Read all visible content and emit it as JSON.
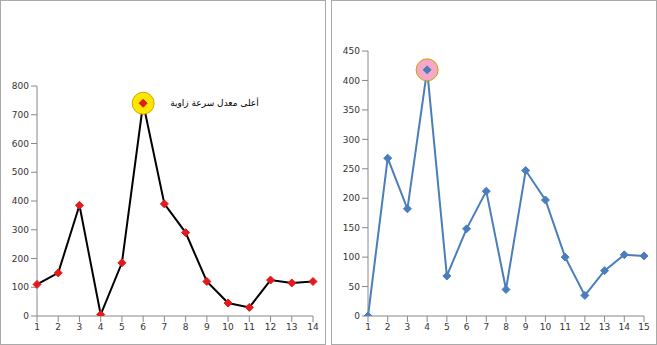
{
  "chart_data": [
    {
      "type": "line",
      "categories": [
        "1",
        "2",
        "3",
        "4",
        "5",
        "6",
        "7",
        "8",
        "9",
        "10",
        "11",
        "12",
        "13",
        "14"
      ],
      "series": [
        {
          "values": [
            110,
            150,
            385,
            5,
            185,
            740,
            390,
            290,
            120,
            45,
            30,
            125,
            115,
            120
          ],
          "color": "#000000",
          "marker": "diamond",
          "colors": [
            "#e31a1c",
            "#e31a1c",
            "#e31a1c",
            "#e31a1c",
            "#e31a1c",
            "#e31a1c",
            "#e31a1c",
            "#e31a1c",
            "#e31a1c",
            "#e31a1c",
            "#e31a1c",
            "#e31a1c",
            "#e31a1c",
            "#e31a1c"
          ]
        }
      ],
      "ylim": [
        0,
        800
      ],
      "yticks": [
        0,
        100,
        200,
        300,
        400,
        500,
        600,
        700,
        800
      ],
      "grid": false,
      "highlight": {
        "x": 6,
        "y": 740,
        "text": "أعلى معدل سرعة زاوية"
      }
    },
    {
      "type": "line",
      "categories": [
        "1",
        "2",
        "3",
        "4",
        "5",
        "6",
        "7",
        "8",
        "9",
        "10",
        "11",
        "12",
        "13",
        "14",
        "15"
      ],
      "series": [
        {
          "values": [
            0,
            268,
            182,
            418,
            68,
            148,
            212,
            45,
            247,
            197,
            100,
            35,
            77,
            104,
            102
          ],
          "color": "#4a7ebb",
          "marker": "diamond"
        }
      ],
      "ylim": [
        0,
        450
      ],
      "yticks": [
        0,
        50,
        100,
        150,
        200,
        250,
        300,
        350,
        400,
        450
      ],
      "grid": false,
      "highlight": {
        "x": 4,
        "y": 418
      }
    }
  ]
}
